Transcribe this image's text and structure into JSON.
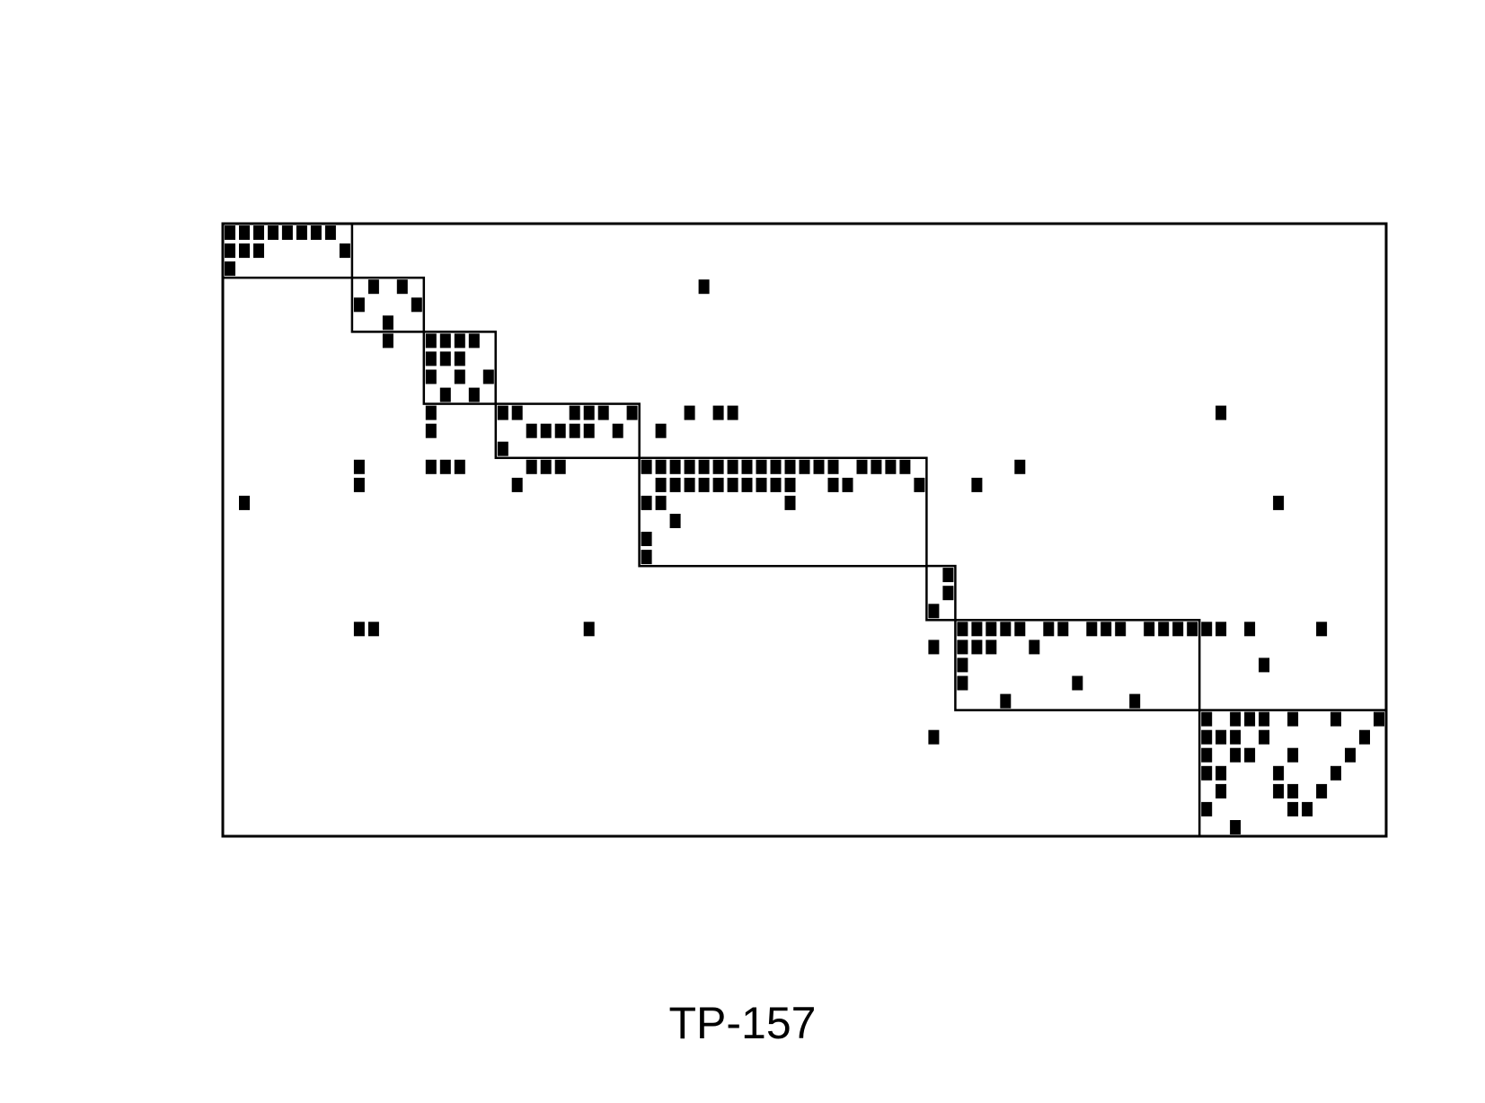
{
  "colors": {
    "foreground": "#000000",
    "background": "#ffffff"
  },
  "chart_data": {
    "type": "heatmap",
    "title": "TP-157",
    "n_rows": 34,
    "n_cols": 81,
    "blocks": [
      {
        "row_start": 0,
        "row_end": 3,
        "col_start": 0,
        "col_end": 9
      },
      {
        "row_start": 3,
        "row_end": 6,
        "col_start": 9,
        "col_end": 14
      },
      {
        "row_start": 6,
        "row_end": 10,
        "col_start": 14,
        "col_end": 19
      },
      {
        "row_start": 10,
        "row_end": 13,
        "col_start": 19,
        "col_end": 29
      },
      {
        "row_start": 13,
        "row_end": 19,
        "col_start": 29,
        "col_end": 49
      },
      {
        "row_start": 19,
        "row_end": 22,
        "col_start": 49,
        "col_end": 51
      },
      {
        "row_start": 22,
        "row_end": 27,
        "col_start": 51,
        "col_end": 68
      },
      {
        "row_start": 27,
        "row_end": 34,
        "col_start": 68,
        "col_end": 81
      }
    ],
    "cells": [
      [
        0,
        0
      ],
      [
        0,
        1
      ],
      [
        0,
        2
      ],
      [
        0,
        3
      ],
      [
        0,
        4
      ],
      [
        0,
        5
      ],
      [
        0,
        6
      ],
      [
        0,
        7
      ],
      [
        1,
        0
      ],
      [
        1,
        1
      ],
      [
        1,
        2
      ],
      [
        1,
        8
      ],
      [
        2,
        0
      ],
      [
        3,
        10
      ],
      [
        3,
        12
      ],
      [
        3,
        33
      ],
      [
        4,
        9
      ],
      [
        4,
        13
      ],
      [
        5,
        11
      ],
      [
        6,
        11
      ],
      [
        6,
        14
      ],
      [
        6,
        15
      ],
      [
        6,
        16
      ],
      [
        6,
        17
      ],
      [
        7,
        14
      ],
      [
        7,
        15
      ],
      [
        7,
        16
      ],
      [
        8,
        14
      ],
      [
        8,
        16
      ],
      [
        8,
        18
      ],
      [
        9,
        15
      ],
      [
        9,
        17
      ],
      [
        10,
        14
      ],
      [
        10,
        19
      ],
      [
        10,
        20
      ],
      [
        10,
        24
      ],
      [
        10,
        25
      ],
      [
        10,
        26
      ],
      [
        10,
        28
      ],
      [
        10,
        32
      ],
      [
        10,
        34
      ],
      [
        10,
        35
      ],
      [
        10,
        69
      ],
      [
        11,
        14
      ],
      [
        11,
        21
      ],
      [
        11,
        22
      ],
      [
        11,
        23
      ],
      [
        11,
        24
      ],
      [
        11,
        25
      ],
      [
        11,
        27
      ],
      [
        11,
        30
      ],
      [
        12,
        19
      ],
      [
        13,
        9
      ],
      [
        13,
        14
      ],
      [
        13,
        15
      ],
      [
        13,
        16
      ],
      [
        13,
        21
      ],
      [
        13,
        22
      ],
      [
        13,
        23
      ],
      [
        13,
        29
      ],
      [
        13,
        30
      ],
      [
        13,
        31
      ],
      [
        13,
        32
      ],
      [
        13,
        33
      ],
      [
        13,
        34
      ],
      [
        13,
        35
      ],
      [
        13,
        36
      ],
      [
        13,
        37
      ],
      [
        13,
        38
      ],
      [
        13,
        39
      ],
      [
        13,
        40
      ],
      [
        13,
        41
      ],
      [
        13,
        42
      ],
      [
        13,
        44
      ],
      [
        13,
        45
      ],
      [
        13,
        46
      ],
      [
        13,
        47
      ],
      [
        13,
        55
      ],
      [
        14,
        9
      ],
      [
        14,
        20
      ],
      [
        14,
        30
      ],
      [
        14,
        31
      ],
      [
        14,
        32
      ],
      [
        14,
        33
      ],
      [
        14,
        34
      ],
      [
        14,
        35
      ],
      [
        14,
        36
      ],
      [
        14,
        37
      ],
      [
        14,
        38
      ],
      [
        14,
        39
      ],
      [
        14,
        42
      ],
      [
        14,
        43
      ],
      [
        14,
        48
      ],
      [
        14,
        52
      ],
      [
        15,
        1
      ],
      [
        15,
        29
      ],
      [
        15,
        30
      ],
      [
        15,
        39
      ],
      [
        15,
        73
      ],
      [
        16,
        31
      ],
      [
        17,
        29
      ],
      [
        18,
        29
      ],
      [
        19,
        50
      ],
      [
        20,
        50
      ],
      [
        21,
        49
      ],
      [
        22,
        9
      ],
      [
        22,
        10
      ],
      [
        22,
        25
      ],
      [
        22,
        51
      ],
      [
        22,
        52
      ],
      [
        22,
        53
      ],
      [
        22,
        54
      ],
      [
        22,
        55
      ],
      [
        22,
        57
      ],
      [
        22,
        58
      ],
      [
        22,
        60
      ],
      [
        22,
        61
      ],
      [
        22,
        62
      ],
      [
        22,
        64
      ],
      [
        22,
        65
      ],
      [
        22,
        66
      ],
      [
        22,
        67
      ],
      [
        22,
        68
      ],
      [
        22,
        69
      ],
      [
        22,
        71
      ],
      [
        22,
        76
      ],
      [
        23,
        49
      ],
      [
        23,
        51
      ],
      [
        23,
        52
      ],
      [
        23,
        53
      ],
      [
        23,
        56
      ],
      [
        24,
        51
      ],
      [
        24,
        72
      ],
      [
        25,
        51
      ],
      [
        25,
        59
      ],
      [
        26,
        54
      ],
      [
        26,
        63
      ],
      [
        27,
        68
      ],
      [
        27,
        70
      ],
      [
        27,
        71
      ],
      [
        27,
        72
      ],
      [
        27,
        74
      ],
      [
        27,
        77
      ],
      [
        27,
        80
      ],
      [
        28,
        49
      ],
      [
        28,
        68
      ],
      [
        28,
        69
      ],
      [
        28,
        70
      ],
      [
        28,
        72
      ],
      [
        28,
        79
      ],
      [
        29,
        68
      ],
      [
        29,
        70
      ],
      [
        29,
        71
      ],
      [
        29,
        74
      ],
      [
        29,
        78
      ],
      [
        30,
        68
      ],
      [
        30,
        69
      ],
      [
        30,
        73
      ],
      [
        30,
        77
      ],
      [
        31,
        69
      ],
      [
        31,
        73
      ],
      [
        31,
        74
      ],
      [
        31,
        76
      ],
      [
        32,
        68
      ],
      [
        32,
        74
      ],
      [
        32,
        75
      ],
      [
        33,
        70
      ]
    ]
  }
}
